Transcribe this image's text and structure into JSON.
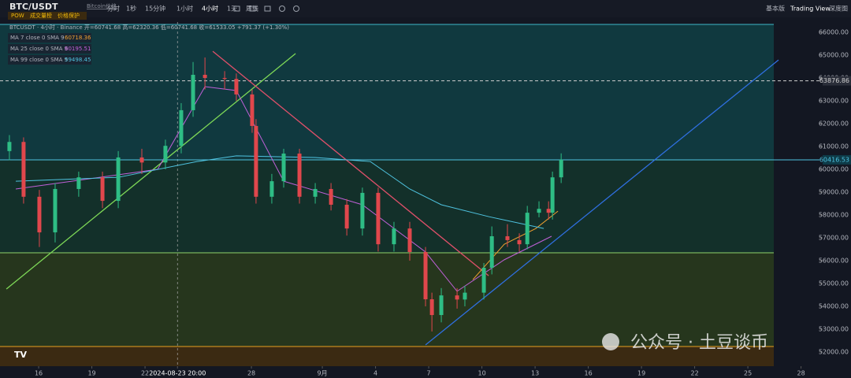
{
  "header": {
    "symbol": "BTC/USDT",
    "subtitle": "Bitcoin价格",
    "intervals": [
      "分时",
      "1秒",
      "15分钟",
      "1小时",
      "4小时",
      "1天",
      "周线"
    ],
    "right": [
      "基本版",
      "Trading View",
      "深度图"
    ],
    "tags": [
      "POW",
      "成交量榜",
      "价格保护"
    ]
  },
  "chart_data": {
    "type": "candlestick",
    "info": "BTCUSDT · 4小时 · Binance  开=60741.68 高=62320.36 低=60741.68 收=61533.05 +791.37 (+1.30%)",
    "watermark": "公众号 · 土豆谈币",
    "x": [
      14.35,
      15.15,
      16.04,
      16.93,
      18.26,
      19.6,
      20.49,
      21.82,
      23.15,
      24.04,
      24.71,
      25.38,
      26.49,
      27.15,
      28.04,
      28.26,
      29.15,
      29.82,
      30.71,
      31.6,
      32.49,
      33.38,
      34.26,
      35.15,
      36.04,
      36.93,
      37.82,
      38.18,
      38.71,
      39.6,
      40.04,
      41.11,
      41.56,
      42.44,
      43.11,
      43.56,
      44.22,
      44.76,
      44.98,
      45.47
    ],
    "open": [
      60800,
      61200,
      58800,
      57240,
      59140,
      59650,
      58620,
      60520,
      60300,
      61030,
      62590,
      64140,
      64000,
      63960,
      63280,
      61900,
      58800,
      59480,
      60690,
      58800,
      59140,
      58450,
      57410,
      58970,
      56720,
      57410,
      56380,
      54310,
      53620,
      54480,
      54300,
      54600,
      55690,
      57070,
      56900,
      56720,
      58100,
      58270,
      58100,
      59650
    ],
    "high": [
      61500,
      61400,
      59100,
      59400,
      59900,
      59900,
      60800,
      60900,
      61300,
      62900,
      64700,
      64900,
      64300,
      64200,
      63500,
      62200,
      59800,
      60900,
      60900,
      59400,
      59400,
      58700,
      59200,
      59200,
      57700,
      57700,
      56600,
      54600,
      54800,
      54800,
      54900,
      55900,
      57500,
      57600,
      57200,
      58400,
      58600,
      58600,
      59900,
      60700
    ],
    "low": [
      60400,
      58500,
      56600,
      56800,
      58800,
      58300,
      58300,
      59800,
      60000,
      60700,
      62300,
      63500,
      63500,
      63000,
      61600,
      58500,
      58500,
      59200,
      58500,
      58500,
      58200,
      57100,
      57100,
      56400,
      56400,
      56000,
      54000,
      52900,
      53300,
      53900,
      54000,
      54300,
      55400,
      56600,
      56400,
      56500,
      57900,
      57800,
      57800,
      59400
    ],
    "close": [
      61200,
      58800,
      57240,
      59140,
      59650,
      58620,
      60520,
      60300,
      61030,
      62590,
      64140,
      64000,
      63960,
      63280,
      61900,
      58800,
      59480,
      60690,
      58800,
      59140,
      58450,
      57410,
      58970,
      56720,
      57410,
      56380,
      54310,
      53620,
      54480,
      54300,
      54600,
      55690,
      57070,
      56900,
      56720,
      58100,
      58270,
      58100,
      59650,
      60420
    ],
    "up_color": "#2ebd85",
    "down_color": "#e0474c",
    "series": [
      {
        "name": "MA 7 close 0 SMA 9",
        "last": 60718.36,
        "color": "#f0a030",
        "x": [
          40.49,
          42.26,
          44.04,
          45.29
        ],
        "values": [
          55170,
          56720,
          57410,
          58170
        ]
      },
      {
        "name": "MA 25 close 0 SMA 9",
        "last": 60195.51,
        "color": "#c060d8",
        "x": [
          14.71,
          22.71,
          25.38,
          27.15,
          29.82,
          34.26,
          37.82,
          39.6,
          42.26,
          44.93
        ],
        "values": [
          59140,
          60000,
          63620,
          63450,
          59480,
          58450,
          56380,
          54660,
          56040,
          57070
        ]
      },
      {
        "name": "MA 99 close 0 SMA 9",
        "last": 59498.45,
        "color": "#4fc3e0",
        "x": [
          14.71,
          20.49,
          24.93,
          27.15,
          31.6,
          34.71,
          36.93,
          38.71,
          41.38,
          44.49
        ],
        "values": [
          59480,
          59650,
          60340,
          60590,
          60520,
          60340,
          59140,
          58450,
          57930,
          57410
        ]
      }
    ],
    "zones": [
      {
        "bounds": [
          60416.53,
          66345
        ],
        "color": "#10393f"
      },
      {
        "bounds": [
          56345,
          60416.53
        ],
        "color": "#13302a"
      },
      {
        "bounds": [
          52240,
          56345
        ],
        "color": "#26361d"
      },
      {
        "bounds": [
          51380,
          52240
        ],
        "color": "#3b2a12"
      }
    ],
    "levels": [
      {
        "value": 66345,
        "color": "#3fb8c8"
      },
      {
        "value": 56345,
        "color": "#8fd46a"
      },
      {
        "value": 52240,
        "color": "#e8a020"
      }
    ],
    "price_labels": [
      {
        "value": 63876.86,
        "color": "#d0d0d0",
        "dashed": true
      },
      {
        "value": 60416.53,
        "color": "#4fc3e0",
        "dashed": false
      }
    ],
    "drawings": [
      {
        "color": "#7ed957",
        "from": [
          14.18,
          54760
        ],
        "to": [
          30.49,
          65070
        ]
      },
      {
        "color": "#e0506a",
        "from": [
          25.82,
          65170
        ],
        "to": [
          41.38,
          55340
        ]
      },
      {
        "color": "#2f6fe0",
        "from": [
          37.82,
          52310
        ],
        "to": [
          57.73,
          64790
        ]
      }
    ],
    "xlim": [
      13.82,
      60.04
    ],
    "ylim": [
      51380,
      66450
    ],
    "xticks": [
      16,
      19,
      22,
      {
        "value": 23.83,
        "label": "2024-08-23  20:00"
      },
      28,
      {
        "value": 32,
        "label": "9月"
      },
      {
        "value": 35,
        "label": "4"
      },
      {
        "value": 38,
        "label": "7"
      },
      {
        "value": 41,
        "label": "10"
      },
      {
        "value": 44,
        "label": "13"
      },
      {
        "value": 47,
        "label": "16"
      },
      {
        "value": 50,
        "label": "19"
      },
      {
        "value": 53,
        "label": "22"
      },
      {
        "value": 56,
        "label": "25"
      },
      {
        "value": 59,
        "label": "28"
      }
    ],
    "yticks": [
      {
        "value": 52000,
        "label": "52000.00"
      },
      {
        "value": 53000,
        "label": "53000.00"
      },
      {
        "value": 54000,
        "label": "54000.00"
      },
      {
        "value": 55000,
        "label": "55000.00"
      },
      {
        "value": 56000,
        "label": "56000.00"
      },
      {
        "value": 57000,
        "label": "57000.00"
      },
      {
        "value": 58000,
        "label": "58000.00"
      },
      {
        "value": 59000,
        "label": "59000.00"
      },
      {
        "value": 60000,
        "label": "60000.00"
      },
      {
        "value": 61000,
        "label": "61000.00"
      },
      {
        "value": 62000,
        "label": "62000.00"
      },
      {
        "value": 63000,
        "label": "63000.00"
      },
      {
        "value": 64000,
        "label": "64000.00"
      },
      {
        "value": 65000,
        "label": "65000.00"
      },
      {
        "value": 66000,
        "label": "66000.00"
      }
    ]
  }
}
